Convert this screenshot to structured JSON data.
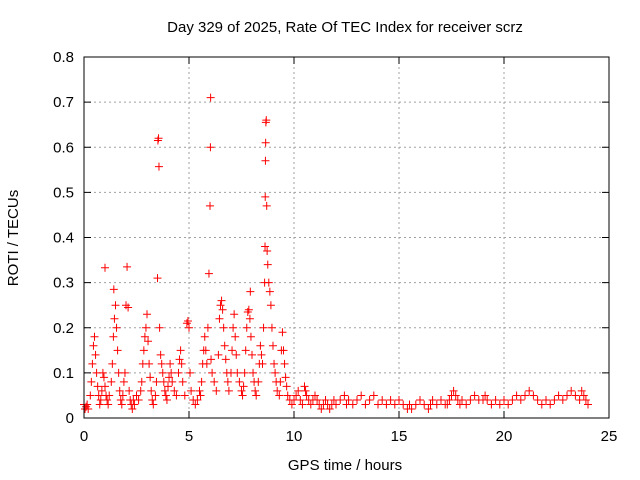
{
  "chart_data": {
    "type": "scatter",
    "title": "Day 329 of 2025, Rate Of TEC Index for receiver scrz",
    "xlabel": "GPS time / hours",
    "ylabel": "ROTI / TECUs",
    "xlim": [
      0,
      25
    ],
    "ylim": [
      0,
      0.8
    ],
    "xticks": [
      0,
      5,
      10,
      15,
      20,
      25
    ],
    "yticks": [
      0,
      0.1,
      0.2,
      0.3,
      0.4,
      0.5,
      0.6,
      0.7,
      0.8
    ],
    "xtick_labels": [
      "0",
      "5",
      "10",
      "15",
      "20",
      "25"
    ],
    "ytick_labels": [
      "0",
      "0.1",
      "0.2",
      "0.3",
      "0.4",
      "0.5",
      "0.6",
      "0.7",
      "0.8"
    ],
    "grid": true,
    "marker": "+",
    "color": "#ff0000",
    "series": [
      {
        "name": "ROTI",
        "points": [
          [
            0.0,
            0.03
          ],
          [
            0.05,
            0.02
          ],
          [
            0.1,
            0.025
          ],
          [
            0.15,
            0.03
          ],
          [
            0.2,
            0.02
          ],
          [
            0.3,
            0.05
          ],
          [
            0.35,
            0.08
          ],
          [
            0.4,
            0.12
          ],
          [
            0.45,
            0.16
          ],
          [
            0.5,
            0.18
          ],
          [
            0.55,
            0.14
          ],
          [
            0.6,
            0.1
          ],
          [
            0.65,
            0.07
          ],
          [
            0.7,
            0.05
          ],
          [
            0.75,
            0.03
          ],
          [
            0.8,
            0.04
          ],
          [
            0.85,
            0.06
          ],
          [
            0.9,
            0.1
          ],
          [
            0.95,
            0.09
          ],
          [
            1.0,
            0.07
          ],
          [
            1.0,
            0.333
          ],
          [
            1.05,
            0.05
          ],
          [
            1.1,
            0.04
          ],
          [
            1.15,
            0.03
          ],
          [
            1.2,
            0.05
          ],
          [
            1.3,
            0.08
          ],
          [
            1.35,
            0.12
          ],
          [
            1.4,
            0.18
          ],
          [
            1.42,
            0.285
          ],
          [
            1.45,
            0.22
          ],
          [
            1.5,
            0.25
          ],
          [
            1.55,
            0.2
          ],
          [
            1.6,
            0.15
          ],
          [
            1.65,
            0.1
          ],
          [
            1.7,
            0.06
          ],
          [
            1.75,
            0.04
          ],
          [
            1.8,
            0.03
          ],
          [
            1.85,
            0.05
          ],
          [
            1.9,
            0.08
          ],
          [
            1.95,
            0.1
          ],
          [
            2.0,
            0.25
          ],
          [
            2.05,
            0.335
          ],
          [
            2.1,
            0.245
          ],
          [
            2.15,
            0.06
          ],
          [
            2.2,
            0.04
          ],
          [
            2.25,
            0.03
          ],
          [
            2.3,
            0.02
          ],
          [
            2.35,
            0.04
          ],
          [
            2.4,
            0.03
          ],
          [
            2.5,
            0.05
          ],
          [
            2.6,
            0.04
          ],
          [
            2.7,
            0.06
          ],
          [
            2.75,
            0.08
          ],
          [
            2.8,
            0.12
          ],
          [
            2.85,
            0.15
          ],
          [
            2.9,
            0.18
          ],
          [
            2.95,
            0.2
          ],
          [
            3.0,
            0.23
          ],
          [
            3.05,
            0.17
          ],
          [
            3.1,
            0.12
          ],
          [
            3.15,
            0.09
          ],
          [
            3.2,
            0.06
          ],
          [
            3.25,
            0.04
          ],
          [
            3.3,
            0.03
          ],
          [
            3.4,
            0.05
          ],
          [
            3.45,
            0.08
          ],
          [
            3.5,
            0.31
          ],
          [
            3.52,
            0.615
          ],
          [
            3.55,
            0.62
          ],
          [
            3.57,
            0.557
          ],
          [
            3.6,
            0.2
          ],
          [
            3.65,
            0.14
          ],
          [
            3.7,
            0.12
          ],
          [
            3.75,
            0.1
          ],
          [
            3.8,
            0.08
          ],
          [
            3.85,
            0.06
          ],
          [
            3.9,
            0.05
          ],
          [
            3.95,
            0.04
          ],
          [
            4.0,
            0.07
          ],
          [
            4.05,
            0.09
          ],
          [
            4.1,
            0.12
          ],
          [
            4.15,
            0.1
          ],
          [
            4.2,
            0.08
          ],
          [
            4.3,
            0.06
          ],
          [
            4.4,
            0.05
          ],
          [
            4.5,
            0.1
          ],
          [
            4.55,
            0.13
          ],
          [
            4.6,
            0.15
          ],
          [
            4.65,
            0.12
          ],
          [
            4.7,
            0.08
          ],
          [
            4.8,
            0.05
          ],
          [
            4.9,
            0.21
          ],
          [
            4.95,
            0.215
          ],
          [
            5.0,
            0.2
          ],
          [
            5.05,
            0.1
          ],
          [
            5.1,
            0.06
          ],
          [
            5.2,
            0.04
          ],
          [
            5.3,
            0.03
          ],
          [
            5.4,
            0.04
          ],
          [
            5.5,
            0.06
          ],
          [
            5.55,
            0.05
          ],
          [
            5.6,
            0.08
          ],
          [
            5.65,
            0.12
          ],
          [
            5.7,
            0.15
          ],
          [
            5.75,
            0.18
          ],
          [
            5.8,
            0.15
          ],
          [
            5.85,
            0.12
          ],
          [
            5.9,
            0.2
          ],
          [
            5.95,
            0.32
          ],
          [
            6.0,
            0.47
          ],
          [
            6.02,
            0.6
          ],
          [
            6.03,
            0.71
          ],
          [
            6.05,
            0.13
          ],
          [
            6.1,
            0.1
          ],
          [
            6.2,
            0.08
          ],
          [
            6.3,
            0.06
          ],
          [
            6.4,
            0.14
          ],
          [
            6.45,
            0.22
          ],
          [
            6.5,
            0.25
          ],
          [
            6.55,
            0.26
          ],
          [
            6.6,
            0.24
          ],
          [
            6.65,
            0.2
          ],
          [
            6.7,
            0.16
          ],
          [
            6.75,
            0.13
          ],
          [
            6.8,
            0.1
          ],
          [
            6.85,
            0.08
          ],
          [
            6.9,
            0.06
          ],
          [
            7.0,
            0.1
          ],
          [
            7.05,
            0.15
          ],
          [
            7.1,
            0.2
          ],
          [
            7.15,
            0.23
          ],
          [
            7.2,
            0.18
          ],
          [
            7.25,
            0.14
          ],
          [
            7.3,
            0.1
          ],
          [
            7.4,
            0.08
          ],
          [
            7.5,
            0.06
          ],
          [
            7.55,
            0.05
          ],
          [
            7.6,
            0.07
          ],
          [
            7.65,
            0.1
          ],
          [
            7.7,
            0.15
          ],
          [
            7.75,
            0.2
          ],
          [
            7.8,
            0.235
          ],
          [
            7.85,
            0.24
          ],
          [
            7.9,
            0.22
          ],
          [
            7.92,
            0.28
          ],
          [
            7.95,
            0.18
          ],
          [
            8.0,
            0.14
          ],
          [
            8.05,
            0.1
          ],
          [
            8.1,
            0.08
          ],
          [
            8.15,
            0.06
          ],
          [
            8.2,
            0.05
          ],
          [
            8.3,
            0.08
          ],
          [
            8.35,
            0.12
          ],
          [
            8.4,
            0.16
          ],
          [
            8.45,
            0.14
          ],
          [
            8.5,
            0.12
          ],
          [
            8.55,
            0.2
          ],
          [
            8.6,
            0.3
          ],
          [
            8.62,
            0.38
          ],
          [
            8.63,
            0.49
          ],
          [
            8.64,
            0.57
          ],
          [
            8.65,
            0.61
          ],
          [
            8.66,
            0.655
          ],
          [
            8.68,
            0.66
          ],
          [
            8.7,
            0.47
          ],
          [
            8.72,
            0.37
          ],
          [
            8.75,
            0.34
          ],
          [
            8.8,
            0.3
          ],
          [
            8.85,
            0.28
          ],
          [
            8.9,
            0.25
          ],
          [
            8.95,
            0.2
          ],
          [
            9.0,
            0.16
          ],
          [
            9.05,
            0.12
          ],
          [
            9.1,
            0.1
          ],
          [
            9.15,
            0.08
          ],
          [
            9.2,
            0.06
          ],
          [
            9.3,
            0.05
          ],
          [
            9.35,
            0.08
          ],
          [
            9.4,
            0.15
          ],
          [
            9.45,
            0.19
          ],
          [
            9.5,
            0.15
          ],
          [
            9.55,
            0.12
          ],
          [
            9.6,
            0.09
          ],
          [
            9.65,
            0.07
          ],
          [
            9.7,
            0.05
          ],
          [
            9.8,
            0.04
          ],
          [
            9.9,
            0.03
          ],
          [
            10.0,
            0.04
          ],
          [
            10.1,
            0.05
          ],
          [
            10.2,
            0.06
          ],
          [
            10.3,
            0.04
          ],
          [
            10.4,
            0.03
          ],
          [
            10.5,
            0.07
          ],
          [
            10.55,
            0.06
          ],
          [
            10.6,
            0.05
          ],
          [
            10.7,
            0.04
          ],
          [
            10.8,
            0.03
          ],
          [
            10.9,
            0.04
          ],
          [
            11.0,
            0.05
          ],
          [
            11.1,
            0.04
          ],
          [
            11.2,
            0.03
          ],
          [
            11.3,
            0.02
          ],
          [
            11.4,
            0.03
          ],
          [
            11.5,
            0.04
          ],
          [
            11.6,
            0.03
          ],
          [
            11.7,
            0.02
          ],
          [
            11.8,
            0.03
          ],
          [
            11.9,
            0.04
          ],
          [
            12.0,
            0.03
          ],
          [
            12.2,
            0.04
          ],
          [
            12.4,
            0.05
          ],
          [
            12.5,
            0.03
          ],
          [
            12.6,
            0.04
          ],
          [
            12.8,
            0.03
          ],
          [
            13.0,
            0.04
          ],
          [
            13.2,
            0.05
          ],
          [
            13.4,
            0.03
          ],
          [
            13.6,
            0.04
          ],
          [
            13.8,
            0.05
          ],
          [
            14.0,
            0.03
          ],
          [
            14.2,
            0.04
          ],
          [
            14.4,
            0.03
          ],
          [
            14.6,
            0.04
          ],
          [
            14.8,
            0.03
          ],
          [
            15.0,
            0.04
          ],
          [
            15.2,
            0.03
          ],
          [
            15.4,
            0.02
          ],
          [
            15.5,
            0.03
          ],
          [
            15.6,
            0.02
          ],
          [
            15.8,
            0.03
          ],
          [
            16.0,
            0.04
          ],
          [
            16.2,
            0.03
          ],
          [
            16.4,
            0.02
          ],
          [
            16.5,
            0.03
          ],
          [
            16.6,
            0.04
          ],
          [
            16.8,
            0.03
          ],
          [
            17.0,
            0.04
          ],
          [
            17.2,
            0.03
          ],
          [
            17.3,
            0.03
          ],
          [
            17.4,
            0.04
          ],
          [
            17.5,
            0.05
          ],
          [
            17.6,
            0.06
          ],
          [
            17.7,
            0.05
          ],
          [
            17.8,
            0.04
          ],
          [
            17.9,
            0.03
          ],
          [
            18.0,
            0.04
          ],
          [
            18.2,
            0.03
          ],
          [
            18.4,
            0.04
          ],
          [
            18.6,
            0.05
          ],
          [
            18.8,
            0.04
          ],
          [
            19.0,
            0.04
          ],
          [
            19.1,
            0.05
          ],
          [
            19.2,
            0.04
          ],
          [
            19.4,
            0.03
          ],
          [
            19.6,
            0.04
          ],
          [
            19.8,
            0.03
          ],
          [
            20.0,
            0.04
          ],
          [
            20.2,
            0.03
          ],
          [
            20.4,
            0.04
          ],
          [
            20.6,
            0.05
          ],
          [
            20.8,
            0.04
          ],
          [
            21.0,
            0.05
          ],
          [
            21.2,
            0.06
          ],
          [
            21.4,
            0.05
          ],
          [
            21.6,
            0.04
          ],
          [
            21.8,
            0.03
          ],
          [
            22.0,
            0.04
          ],
          [
            22.2,
            0.03
          ],
          [
            22.4,
            0.04
          ],
          [
            22.6,
            0.05
          ],
          [
            22.8,
            0.04
          ],
          [
            23.0,
            0.05
          ],
          [
            23.2,
            0.06
          ],
          [
            23.4,
            0.05
          ],
          [
            23.6,
            0.04
          ],
          [
            23.7,
            0.06
          ],
          [
            23.8,
            0.05
          ],
          [
            23.9,
            0.04
          ],
          [
            24.0,
            0.03
          ]
        ]
      }
    ]
  }
}
